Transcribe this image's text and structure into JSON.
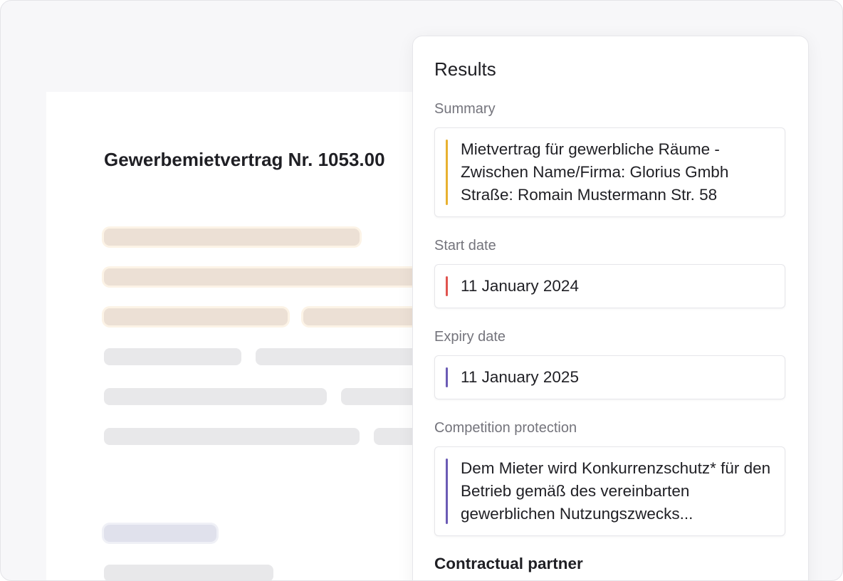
{
  "document": {
    "title": "Gewerbemietvertrag Nr. 1053.00"
  },
  "results": {
    "title": "Results",
    "fields": [
      {
        "label": "Summary",
        "text": "Mietvertrag für gewerbliche Räume - Zwischen Name/Firma: Glorius Gmbh Straße: Romain Mustermann Str. 58"
      },
      {
        "label": "Start date",
        "text": "11 January 2024"
      },
      {
        "label": "Expiry date",
        "text": "11 January 2025"
      },
      {
        "label": "Competition protection",
        "text": "Dem Mieter wird Konkurrenzschutz* für den Betrieb gemäß des vereinbarten gewerblichen Nutzungszwecks..."
      }
    ],
    "next_heading": "Contractual partner"
  }
}
